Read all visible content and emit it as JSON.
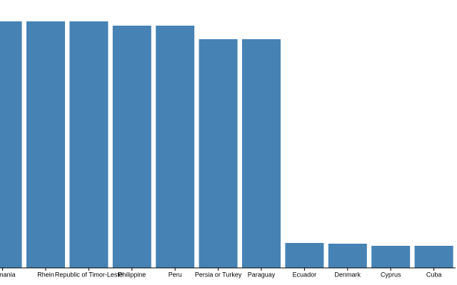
{
  "chart_data": {
    "type": "bar",
    "categories": [
      "Romania",
      "Rhein",
      "Republic of Timor-Leste",
      "Philippine",
      "Peru",
      "Persia or Turkey",
      "Paraguay",
      "Ecuador",
      "Denmark",
      "Cyprus",
      "Cuba"
    ],
    "values": [
      346,
      346,
      346,
      340,
      340,
      321,
      321,
      35,
      34,
      31,
      31
    ],
    "color": "#4682b4"
  }
}
